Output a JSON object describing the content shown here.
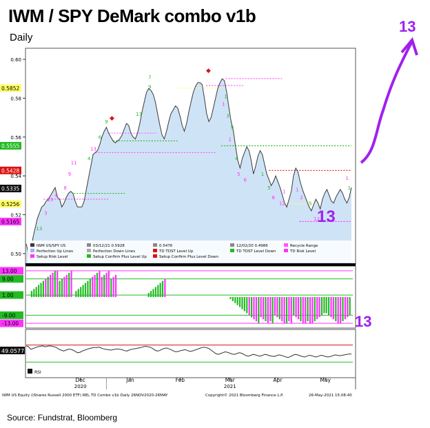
{
  "title": "IWM / SPY DeMark combo v1b",
  "subtitle": "Daily",
  "source": "Source: Fundstrat, Bloomberg",
  "footer": {
    "left": "IWM US Equity (iShares Russell 2000 ETF) REL TD Combo v1b  Daily 26NOV2020-26MAY",
    "center": "Copyright© 2021 Bloomberg Finance L.P.",
    "right": "26-May-2021 15:08:40"
  },
  "annotations": {
    "arrow_label": "13",
    "price_label": "13",
    "setup_label": "13"
  },
  "chart_data": [
    {
      "type": "area",
      "name": "price_panel",
      "ylim": [
        0.495,
        0.605
      ],
      "y_ticks": [
        "0.60",
        "0.58",
        "0.56",
        "0.54",
        "0.52",
        "0.50"
      ],
      "x_labels": [
        {
          "label": "Dec",
          "sub": "2020",
          "t": 25
        },
        {
          "label": "Jan",
          "sub": "",
          "t": 48
        },
        {
          "label": "Feb",
          "sub": "",
          "t": 71
        },
        {
          "label": "Mar",
          "sub": "2021",
          "t": 94
        },
        {
          "label": "Apr",
          "sub": "",
          "t": 116
        },
        {
          "label": "May",
          "sub": "",
          "t": 138
        }
      ],
      "x_range": [
        0,
        150
      ],
      "ratio": [
        0.505,
        0.5,
        0.497,
        0.508,
        0.513,
        0.518,
        0.521,
        0.524,
        0.525,
        0.527,
        0.528,
        0.53,
        0.532,
        0.534,
        0.529,
        0.528,
        0.524,
        0.526,
        0.529,
        0.531,
        0.532,
        0.531,
        0.527,
        0.524,
        0.524,
        0.524,
        0.527,
        0.533,
        0.539,
        0.545,
        0.551,
        0.552,
        0.553,
        0.556,
        0.56,
        0.563,
        0.565,
        0.562,
        0.56,
        0.558,
        0.557,
        0.558,
        0.559,
        0.561,
        0.564,
        0.567,
        0.566,
        0.562,
        0.56,
        0.559,
        0.562,
        0.567,
        0.573,
        0.578,
        0.583,
        0.585,
        0.584,
        0.582,
        0.578,
        0.572,
        0.566,
        0.561,
        0.559,
        0.563,
        0.568,
        0.572,
        0.574,
        0.576,
        0.575,
        0.571,
        0.566,
        0.563,
        0.567,
        0.573,
        0.578,
        0.583,
        0.586,
        0.588,
        0.588,
        0.587,
        0.58,
        0.572,
        0.568,
        0.57,
        0.575,
        0.58,
        0.585,
        0.588,
        0.59,
        0.589,
        0.583,
        0.575,
        0.568,
        0.563,
        0.555,
        0.548,
        0.544,
        0.549,
        0.552,
        0.555,
        0.553,
        0.548,
        0.541,
        0.545,
        0.55,
        0.553,
        0.551,
        0.546,
        0.541,
        0.538,
        0.535,
        0.537,
        0.54,
        0.537,
        0.534,
        0.53,
        0.526,
        0.524,
        0.528,
        0.532,
        0.54,
        0.544,
        0.542,
        0.537,
        0.533,
        0.53,
        0.527,
        0.524,
        0.522,
        0.525,
        0.528,
        0.526,
        0.523,
        0.528,
        0.531,
        0.533,
        0.53,
        0.527,
        0.526,
        0.529,
        0.531,
        0.533,
        0.531,
        0.528,
        0.526,
        0.529,
        0.534
      ],
      "level_tags": [
        {
          "value": "0.5852",
          "color": "#ffff66",
          "text_color": "#000000"
        },
        {
          "value": "0.5555",
          "color": "#22bb22",
          "text_color": "#ffffff"
        },
        {
          "value": "0.5428",
          "color": "#dd1111",
          "text_color": "#ffffff"
        },
        {
          "value": "0.5335",
          "color": "#111111",
          "text_color": "#ffffff"
        },
        {
          "value": "0.5256",
          "color": "#ffff66",
          "text_color": "#000000"
        },
        {
          "value": "0.5165",
          "color": "#ff33ff",
          "text_color": "#000000"
        }
      ],
      "levels": [
        {
          "y": 0.5852,
          "t0": 68,
          "t1": 92,
          "color": "#ffff66"
        },
        {
          "y": 0.5901,
          "t0": 92,
          "t1": 118,
          "color": "#ff55ff"
        },
        {
          "y": 0.5865,
          "t0": 83,
          "t1": 100,
          "color": "#ff55ff"
        },
        {
          "y": 0.5555,
          "t0": 90,
          "t1": 150,
          "color": "#22bb22"
        },
        {
          "y": 0.5428,
          "t0": 112,
          "t1": 150,
          "color": "#dd1111"
        },
        {
          "y": 0.5165,
          "t0": 126,
          "t1": 150,
          "color": "#ff33ff"
        },
        {
          "y": 0.5256,
          "t0": 120,
          "t1": 135,
          "color": "#ffff66"
        },
        {
          "y": 0.562,
          "t0": 38,
          "t1": 60,
          "color": "#ff55ff"
        },
        {
          "y": 0.552,
          "t0": 32,
          "t1": 88,
          "color": "#ff55ff"
        },
        {
          "y": 0.528,
          "t0": 8,
          "t1": 38,
          "color": "#ff55ff"
        },
        {
          "y": 0.531,
          "t0": 22,
          "t1": 46,
          "color": "#22bb22"
        },
        {
          "y": 0.558,
          "t0": 40,
          "t1": 70,
          "color": "#22bb22"
        }
      ],
      "legend": [
        "IWM US/SPY US",
        "03/12/21 0.5928",
        "0.5476",
        "12/02/20 0.4986",
        "Recycle Range",
        "Perfection Up Lines",
        "Perfection Down Lines",
        "TD TDST Level Up",
        "Setup Risk Level",
        "Setup Confirm Plus Level Up",
        "Setup Confirm Plus Level Down",
        "TD TDST Level Down",
        "TD Risk Level"
      ],
      "counts": [
        {
          "t": 6,
          "y": 0.512,
          "text": "13",
          "c": "#22bb22"
        },
        {
          "t": 9,
          "y": 0.52,
          "text": "3",
          "c": "#ff33ff"
        },
        {
          "t": 11,
          "y": 0.527,
          "text": "13",
          "c": "#ff33ff"
        },
        {
          "t": 14,
          "y": 0.529,
          "text": "6",
          "c": "#ff33ff"
        },
        {
          "t": 18,
          "y": 0.533,
          "text": "8",
          "c": "#ff33ff"
        },
        {
          "t": 20,
          "y": 0.54,
          "text": "9",
          "c": "#ff33ff"
        },
        {
          "t": 22,
          "y": 0.546,
          "text": "11",
          "c": "#ff33ff"
        },
        {
          "t": 29,
          "y": 0.548,
          "text": "4",
          "c": "#22bb22"
        },
        {
          "t": 31,
          "y": 0.553,
          "text": "13",
          "c": "#ff33ff"
        },
        {
          "t": 34,
          "y": 0.559,
          "text": "6",
          "c": "#22bb22"
        },
        {
          "t": 37,
          "y": 0.567,
          "text": "9",
          "c": "#22bb22"
        },
        {
          "t": 52,
          "y": 0.571,
          "text": "13",
          "c": "#22bb22"
        },
        {
          "t": 57,
          "y": 0.585,
          "text": "9",
          "c": "#22bb22"
        },
        {
          "t": 57,
          "y": 0.59,
          "text": "7",
          "c": "#22bb22"
        },
        {
          "t": 92,
          "y": 0.58,
          "text": "1",
          "c": "#22bb22"
        },
        {
          "t": 93,
          "y": 0.57,
          "text": "3",
          "c": "#22bb22"
        },
        {
          "t": 95,
          "y": 0.564,
          "text": "9",
          "c": "#22bb22"
        },
        {
          "t": 91,
          "y": 0.576,
          "text": "1",
          "c": "#ff33ff"
        },
        {
          "t": 94,
          "y": 0.558,
          "text": "1",
          "c": "#ff33ff"
        },
        {
          "t": 97,
          "y": 0.548,
          "text": "4",
          "c": "#22bb22"
        },
        {
          "t": 98,
          "y": 0.54,
          "text": "5",
          "c": "#ff33ff"
        },
        {
          "t": 101,
          "y": 0.537,
          "text": "6",
          "c": "#ff33ff"
        },
        {
          "t": 109,
          "y": 0.54,
          "text": "1",
          "c": "#22bb22"
        },
        {
          "t": 112,
          "y": 0.533,
          "text": "5",
          "c": "#22bb22"
        },
        {
          "t": 114,
          "y": 0.528,
          "text": "8",
          "c": "#ff33ff"
        },
        {
          "t": 118,
          "y": 0.525,
          "text": "12",
          "c": "#ff33ff"
        },
        {
          "t": 119,
          "y": 0.531,
          "text": "1",
          "c": "#ff33ff"
        },
        {
          "t": 125,
          "y": 0.532,
          "text": "1",
          "c": "#ff33ff"
        },
        {
          "t": 127,
          "y": 0.528,
          "text": "2",
          "c": "#ff33ff"
        },
        {
          "t": 131,
          "y": 0.525,
          "text": "5",
          "c": "#22bb22"
        },
        {
          "t": 134,
          "y": 0.517,
          "text": "12",
          "c": "#ff33ff"
        },
        {
          "t": 148,
          "y": 0.538,
          "text": "1",
          "c": "#ff33ff"
        },
        {
          "t": 149,
          "y": 0.533,
          "text": "1",
          "c": "#22bb22"
        }
      ]
    },
    {
      "type": "bar",
      "name": "setup_count_panel",
      "ylim": [
        -14,
        14
      ],
      "y_tags": [
        {
          "value": "13.00",
          "y": 13,
          "color": "#ff33ff"
        },
        {
          "value": "9.00",
          "y": 9,
          "color": "#22bb22"
        },
        {
          "value": "1.00",
          "y": 1,
          "color": "#22bb22"
        },
        {
          "value": "-9.00",
          "y": -9,
          "color": "#22bb22"
        },
        {
          "value": "-13.00",
          "y": -13,
          "color": "#ff33ff"
        }
      ],
      "reference_lines": [
        13,
        9,
        1,
        -9,
        -13
      ],
      "bars": [
        0,
        0,
        3,
        4,
        5,
        6,
        7,
        8,
        9,
        10,
        11,
        12,
        13,
        13,
        8,
        9,
        10,
        11,
        12,
        13,
        0,
        3,
        4,
        5,
        6,
        7,
        8,
        9,
        10,
        11,
        12,
        13,
        10,
        11,
        12,
        13,
        9,
        10,
        11,
        0,
        0,
        0,
        0,
        0,
        0,
        0,
        0,
        0,
        0,
        0,
        0,
        0,
        2,
        3,
        4,
        5,
        6,
        7,
        8,
        9,
        0,
        0,
        0,
        0,
        0,
        0,
        0,
        0,
        0,
        0,
        0,
        0,
        0,
        0,
        0,
        0,
        0,
        0,
        0,
        0,
        0,
        0,
        0,
        0,
        0,
        0,
        0,
        -1,
        -2,
        -3,
        -4,
        -5,
        -6,
        -7,
        -8,
        -9,
        -10,
        -11,
        -12,
        -13,
        -10,
        -11,
        -12,
        -13,
        -12,
        -13,
        -9,
        -10,
        -11,
        -12,
        -13,
        -13,
        -12,
        -13,
        -9,
        -10,
        -11,
        -12,
        -13,
        -13,
        -12,
        -13,
        -13,
        -12,
        -11,
        -10,
        -9,
        -8,
        -8,
        -9,
        -10,
        -11,
        -12,
        -13,
        -13,
        -12,
        -11,
        -10,
        -9
      ]
    },
    {
      "type": "line",
      "name": "rsi_panel",
      "legend": "RSI",
      "value_tag": "49.0577",
      "ylim": [
        0,
        100
      ],
      "reference_lines": [
        70,
        30
      ],
      "values": [
        68,
        66,
        60,
        62,
        64,
        66,
        67,
        68,
        66,
        67,
        68,
        67,
        66,
        64,
        60,
        58,
        56,
        58,
        60,
        60,
        58,
        55,
        52,
        53,
        56,
        58,
        60,
        62,
        63,
        64,
        64,
        65,
        63,
        61,
        60,
        59,
        58,
        59,
        60,
        61,
        60,
        59,
        57,
        56,
        58,
        60,
        61,
        62,
        63,
        64,
        66,
        67,
        66,
        65,
        62,
        58,
        56,
        57,
        60,
        62,
        63,
        61,
        59,
        56,
        54,
        55,
        57,
        58,
        59,
        57,
        55,
        56,
        58,
        60,
        62,
        64,
        65,
        64,
        62,
        58,
        54,
        50,
        48,
        50,
        52,
        54,
        53,
        51,
        49,
        48,
        50,
        52,
        51,
        48,
        45,
        44,
        46,
        48,
        47,
        45,
        44,
        46,
        48,
        47,
        45,
        44,
        43,
        45,
        47,
        46,
        44,
        42,
        41,
        43,
        46,
        48,
        47,
        45,
        43,
        42,
        44,
        46,
        45,
        43,
        42,
        44,
        46,
        45,
        43,
        42,
        43,
        45,
        47,
        46,
        45,
        46,
        47,
        48,
        49,
        49
      ]
    }
  ]
}
